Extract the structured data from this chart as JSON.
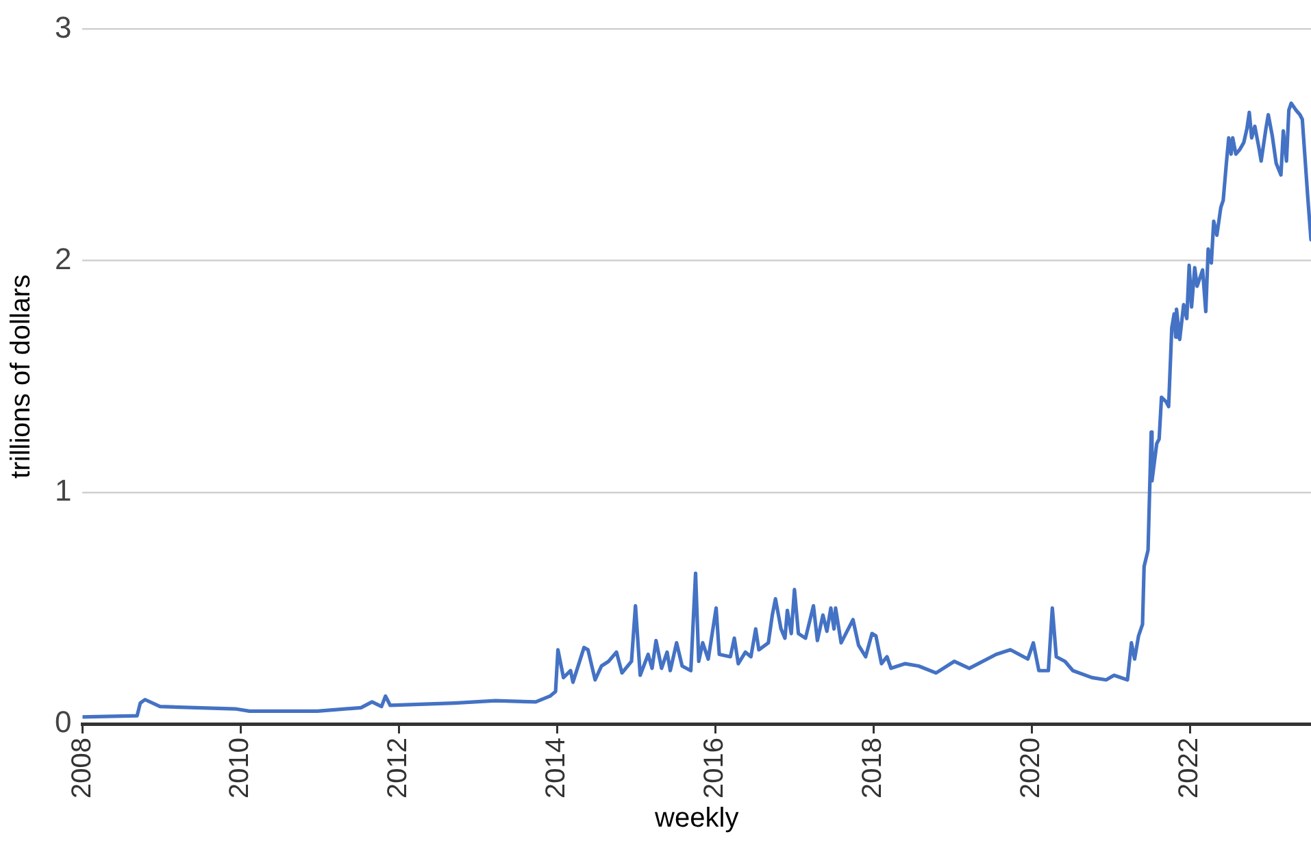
{
  "chart_data": {
    "type": "line",
    "xlabel": "weekly",
    "ylabel": "trillions of dollars",
    "xlim": [
      2008,
      2023.53
    ],
    "xticks": [
      2008,
      2010,
      2012,
      2014,
      2016,
      2018,
      2020,
      2022
    ],
    "ylim": [
      0,
      3
    ],
    "yticks": [
      0,
      1,
      2,
      3
    ],
    "grid": "y",
    "legend": false,
    "marker": "none",
    "x": [
      2008.0,
      2008.69,
      2008.73,
      2008.79,
      2008.98,
      2009.93,
      2010.11,
      2010.97,
      2011.52,
      2011.66,
      2011.78,
      2011.83,
      2011.89,
      2012.7,
      2013.22,
      2013.73,
      2013.91,
      2013.98,
      2014.01,
      2014.08,
      2014.17,
      2014.2,
      2014.34,
      2014.39,
      2014.48,
      2014.56,
      2014.65,
      2014.75,
      2014.82,
      2014.94,
      2014.99,
      2015.05,
      2015.15,
      2015.2,
      2015.25,
      2015.32,
      2015.39,
      2015.43,
      2015.51,
      2015.58,
      2015.69,
      2015.75,
      2015.79,
      2015.84,
      2015.91,
      2016.01,
      2016.05,
      2016.19,
      2016.24,
      2016.29,
      2016.38,
      2016.45,
      2016.51,
      2016.55,
      2016.67,
      2016.72,
      2016.76,
      2016.83,
      2016.88,
      2016.91,
      2016.96,
      2017.0,
      2017.05,
      2017.14,
      2017.24,
      2017.29,
      2017.36,
      2017.41,
      2017.46,
      2017.5,
      2017.52,
      2017.59,
      2017.65,
      2017.74,
      2017.81,
      2017.9,
      2017.98,
      2018.03,
      2018.1,
      2018.17,
      2018.22,
      2018.4,
      2018.57,
      2018.79,
      2019.02,
      2019.21,
      2019.55,
      2019.73,
      2019.95,
      2020.02,
      2020.09,
      2020.21,
      2020.26,
      2020.31,
      2020.42,
      2020.52,
      2020.76,
      2020.94,
      2021.04,
      2021.21,
      2021.26,
      2021.3,
      2021.35,
      2021.4,
      2021.42,
      2021.47,
      2021.51,
      2021.52,
      2021.58,
      2021.61,
      2021.64,
      2021.7,
      2021.73,
      2021.77,
      2021.8,
      2021.82,
      2021.83,
      2021.87,
      2021.92,
      2021.96,
      2021.99,
      2022.02,
      2022.06,
      2022.09,
      2022.13,
      2022.16,
      2022.2,
      2022.23,
      2022.27,
      2022.3,
      2022.34,
      2022.39,
      2022.42,
      2022.46,
      2022.49,
      2022.52,
      2022.54,
      2022.58,
      2022.63,
      2022.68,
      2022.72,
      2022.75,
      2022.78,
      2022.82,
      2022.87,
      2022.9,
      2022.96,
      2022.99,
      2023.04,
      2023.09,
      2023.15,
      2023.18,
      2023.22,
      2023.25,
      2023.28,
      2023.34,
      2023.39,
      2023.42,
      2023.49,
      2023.53
    ],
    "series": [
      {
        "color": "#4472c4",
        "line_style": "solid",
        "values": [
          0.03,
          0.035,
          0.09,
          0.105,
          0.075,
          0.065,
          0.055,
          0.055,
          0.07,
          0.095,
          0.075,
          0.12,
          0.08,
          0.09,
          0.1,
          0.095,
          0.12,
          0.14,
          0.32,
          0.2,
          0.23,
          0.18,
          0.33,
          0.32,
          0.19,
          0.25,
          0.27,
          0.31,
          0.22,
          0.27,
          0.51,
          0.21,
          0.3,
          0.24,
          0.36,
          0.24,
          0.31,
          0.23,
          0.35,
          0.25,
          0.23,
          0.65,
          0.27,
          0.35,
          0.28,
          0.5,
          0.3,
          0.29,
          0.37,
          0.26,
          0.31,
          0.29,
          0.41,
          0.32,
          0.35,
          0.47,
          0.54,
          0.41,
          0.37,
          0.49,
          0.39,
          0.58,
          0.39,
          0.37,
          0.51,
          0.36,
          0.47,
          0.4,
          0.5,
          0.41,
          0.5,
          0.35,
          0.39,
          0.45,
          0.34,
          0.29,
          0.39,
          0.38,
          0.26,
          0.29,
          0.24,
          0.26,
          0.25,
          0.22,
          0.27,
          0.24,
          0.3,
          0.32,
          0.28,
          0.35,
          0.23,
          0.23,
          0.5,
          0.29,
          0.27,
          0.23,
          0.2,
          0.19,
          0.21,
          0.19,
          0.35,
          0.28,
          0.38,
          0.43,
          0.68,
          0.75,
          1.26,
          1.05,
          1.21,
          1.23,
          1.41,
          1.39,
          1.37,
          1.71,
          1.77,
          1.67,
          1.79,
          1.66,
          1.81,
          1.75,
          1.98,
          1.8,
          1.97,
          1.89,
          1.93,
          1.96,
          1.78,
          2.05,
          1.99,
          2.17,
          2.11,
          2.23,
          2.26,
          2.42,
          2.53,
          2.46,
          2.53,
          2.46,
          2.48,
          2.51,
          2.57,
          2.64,
          2.53,
          2.58,
          2.49,
          2.43,
          2.57,
          2.63,
          2.54,
          2.42,
          2.37,
          2.56,
          2.43,
          2.65,
          2.68,
          2.65,
          2.63,
          2.61,
          2.27,
          2.09
        ]
      }
    ]
  }
}
